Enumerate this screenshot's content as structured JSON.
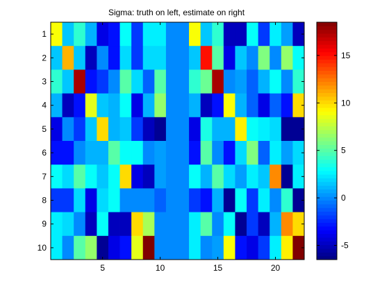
{
  "chart_data": {
    "type": "heatmap",
    "title": "Sigma: truth on left, estimate on right",
    "xlabel": "",
    "ylabel": "",
    "xlim": [
      0.5,
      22.5
    ],
    "ylim": [
      0.5,
      10.5
    ],
    "y_direction": "top-to-bottom",
    "xticks": [
      5,
      10,
      15,
      20
    ],
    "yticks": [
      1,
      2,
      3,
      4,
      5,
      6,
      7,
      8,
      9,
      10
    ],
    "colorscale": "jet",
    "colorbar": {
      "range": [
        -6.5,
        18.5
      ],
      "ticks": [
        -5,
        0,
        5,
        10,
        15
      ]
    },
    "grid": false,
    "rows": [
      [
        9,
        1.5,
        4,
        1,
        -4,
        -3,
        3,
        -2,
        2.5,
        2.5,
        0,
        0,
        9,
        1.5,
        4,
        -5,
        -5,
        3,
        -2,
        2.5,
        0.5,
        -5
      ],
      [
        1.5,
        11,
        1.5,
        -5,
        0,
        -3,
        2,
        -2,
        2,
        2,
        0,
        0,
        1.5,
        15,
        5,
        -4,
        1.5,
        0,
        6,
        0,
        6.5,
        3
      ],
      [
        4,
        1.5,
        17.5,
        -3,
        -2,
        0,
        5,
        2,
        -1,
        5,
        0,
        0,
        4,
        5.5,
        17.5,
        0,
        0.5,
        -1,
        1,
        3,
        0,
        4
      ],
      [
        1,
        -5,
        -3,
        8.5,
        1.5,
        1,
        3,
        -4,
        1,
        6.5,
        0,
        0,
        1,
        -5,
        -3,
        9,
        1,
        -1,
        -4,
        -1,
        -3,
        10
      ],
      [
        -4,
        0,
        -2,
        1.5,
        10,
        1,
        1.5,
        -2,
        -5,
        -6,
        0,
        0,
        -4,
        3.5,
        1,
        1,
        9.5,
        3,
        2.5,
        2,
        -6,
        -6
      ],
      [
        -3,
        -3,
        0,
        1,
        1,
        5,
        3,
        3,
        0,
        0.5,
        0,
        0,
        -3,
        5,
        0,
        -3,
        2,
        6,
        -1,
        2.5,
        0.5,
        2
      ],
      [
        3,
        2,
        5,
        3,
        1.5,
        3,
        10,
        -4,
        -5,
        0.5,
        0,
        0,
        3,
        1,
        5,
        2,
        0.5,
        2.5,
        1.5,
        12,
        -6,
        2.5
      ],
      [
        -2,
        -2,
        2,
        -4,
        2,
        3,
        0,
        0,
        0,
        -1,
        0,
        0,
        -2,
        -3,
        1,
        -6,
        3,
        -2,
        2.5,
        0,
        4,
        -6
      ],
      [
        2.5,
        2,
        0,
        -5,
        3,
        -5,
        -5,
        10,
        7,
        0,
        0,
        0,
        2.5,
        5,
        0,
        3,
        -6,
        -2,
        -5,
        1,
        12,
        10
      ],
      [
        2.5,
        0,
        5,
        6.5,
        -6,
        -4,
        -3,
        8.5,
        18.5,
        0,
        0,
        0,
        2.5,
        0,
        0.5,
        9,
        -3,
        -4,
        -2,
        2.5,
        9.5,
        18.5
      ]
    ]
  }
}
